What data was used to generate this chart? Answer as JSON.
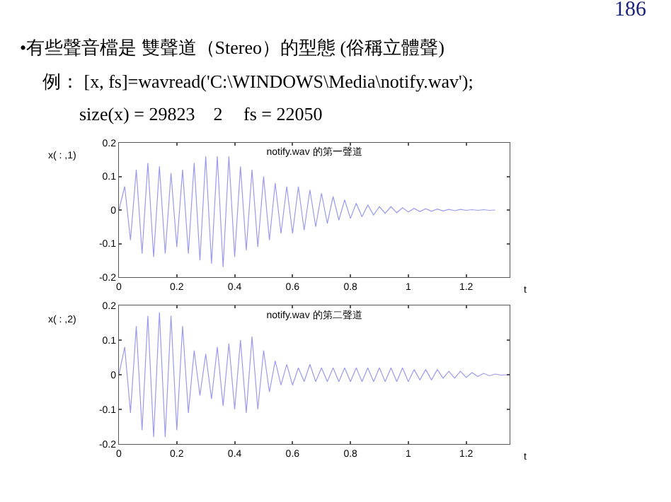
{
  "chart_data": [
    {
      "type": "line",
      "title": "notify.wav 的第一聲道",
      "ylabel": "x( : ,1)",
      "xlabel": "t",
      "annotations": [
        "186",
        "•有些聲音檔是 雙聲道（Stereo）的型態 (俗稱立體聲)",
        "例： [x, fs]=wavread('C:\\WINDOWS\\Media\\notify.wav');",
        "size(x) = 29823    2",
        "fs = 22050"
      ],
      "x": [
        0,
        0.02,
        0.04,
        0.06,
        0.08,
        0.1,
        0.12,
        0.14,
        0.16,
        0.18,
        0.2,
        0.22,
        0.24,
        0.26,
        0.28,
        0.3,
        0.32,
        0.34,
        0.36,
        0.38,
        0.4,
        0.42,
        0.44,
        0.46,
        0.48,
        0.5,
        0.52,
        0.54,
        0.56,
        0.58,
        0.6,
        0.62,
        0.64,
        0.66,
        0.68,
        0.7,
        0.72,
        0.74,
        0.76,
        0.78,
        0.8,
        0.82,
        0.84,
        0.86,
        0.88,
        0.9,
        0.92,
        0.94,
        0.96,
        0.98,
        1.0,
        1.02,
        1.04,
        1.06,
        1.08,
        1.1,
        1.12,
        1.14,
        1.16,
        1.18,
        1.2,
        1.22,
        1.24,
        1.26,
        1.28,
        1.3
      ],
      "series": [
        {
          "color": "#9a9af0",
          "values": [
            0,
            0.07,
            -0.09,
            0.12,
            -0.13,
            0.14,
            -0.14,
            0.13,
            -0.13,
            0.11,
            -0.11,
            0.12,
            -0.13,
            0.14,
            -0.15,
            0.16,
            -0.16,
            0.16,
            -0.17,
            0.16,
            -0.14,
            0.13,
            -0.12,
            0.12,
            -0.11,
            0.1,
            -0.09,
            0.08,
            -0.07,
            0.07,
            -0.07,
            0.07,
            -0.06,
            0.06,
            -0.05,
            0.05,
            -0.04,
            0.04,
            -0.03,
            0.03,
            -0.025,
            0.02,
            -0.02,
            0.015,
            -0.015,
            0.01,
            -0.01,
            0.01,
            -0.008,
            0.007,
            -0.006,
            0.005,
            -0.005,
            0.004,
            -0.004,
            0.003,
            -0.003,
            0.002,
            -0.002,
            0.002,
            -0.001,
            0.001,
            -0.001,
            0.001,
            -0.001,
            0
          ]
        }
      ],
      "xlim": [
        0,
        1.35
      ],
      "xticks": [
        0,
        0.2,
        0.4,
        0.6,
        0.8,
        1,
        1.2
      ],
      "ylim": [
        -0.2,
        0.2
      ],
      "yticks": [
        -0.2,
        -0.1,
        0,
        0.1,
        0.2
      ],
      "grid": false
    },
    {
      "type": "line",
      "title": "notify.wav 的第二聲道",
      "ylabel": "x( : ,2)",
      "xlabel": "t",
      "x": [
        0,
        0.02,
        0.04,
        0.06,
        0.08,
        0.1,
        0.12,
        0.14,
        0.16,
        0.18,
        0.2,
        0.22,
        0.24,
        0.26,
        0.28,
        0.3,
        0.32,
        0.34,
        0.36,
        0.38,
        0.4,
        0.42,
        0.44,
        0.46,
        0.48,
        0.5,
        0.52,
        0.54,
        0.56,
        0.58,
        0.6,
        0.62,
        0.64,
        0.66,
        0.68,
        0.7,
        0.72,
        0.74,
        0.76,
        0.78,
        0.8,
        0.82,
        0.84,
        0.86,
        0.88,
        0.9,
        0.92,
        0.94,
        0.96,
        0.98,
        1.0,
        1.02,
        1.04,
        1.06,
        1.08,
        1.1,
        1.12,
        1.14,
        1.16,
        1.18,
        1.2,
        1.22,
        1.24,
        1.26,
        1.28,
        1.3,
        1.32,
        1.34
      ],
      "series": [
        {
          "color": "#9a9af0",
          "values": [
            0,
            0.08,
            -0.11,
            0.14,
            -0.16,
            0.17,
            -0.18,
            0.18,
            -0.18,
            0.17,
            -0.16,
            0.14,
            -0.11,
            0.07,
            -0.06,
            0.06,
            -0.07,
            0.08,
            -0.09,
            0.09,
            -0.1,
            0.1,
            -0.11,
            0.11,
            -0.1,
            0.07,
            -0.05,
            0.04,
            -0.03,
            0.03,
            -0.03,
            0.02,
            -0.02,
            0.03,
            -0.02,
            0.02,
            -0.02,
            0.02,
            -0.02,
            0.02,
            -0.02,
            0.02,
            -0.02,
            0.02,
            -0.02,
            0.02,
            -0.02,
            0.02,
            -0.02,
            0.02,
            -0.02,
            0.015,
            -0.015,
            0.015,
            -0.015,
            0.015,
            -0.01,
            0.01,
            -0.01,
            0.01,
            -0.008,
            0.006,
            -0.005,
            0.004,
            -0.003,
            0.002,
            -0.001,
            0
          ]
        }
      ],
      "xlim": [
        0,
        1.35
      ],
      "xticks": [
        0,
        0.2,
        0.4,
        0.6,
        0.8,
        1,
        1.2
      ],
      "ylim": [
        -0.2,
        0.2
      ],
      "yticks": [
        -0.2,
        -0.1,
        0,
        0.1,
        0.2
      ],
      "grid": false
    }
  ]
}
